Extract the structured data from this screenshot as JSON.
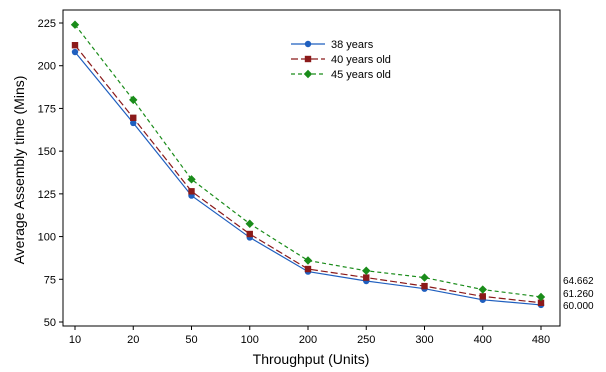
{
  "chart_data": {
    "type": "line",
    "categories": [
      "10",
      "20",
      "50",
      "100",
      "200",
      "250",
      "300",
      "400",
      "480"
    ],
    "xlabel": "Throughput (Units)",
    "ylabel": "Average Assembly time (Mins)",
    "ylim": [
      50,
      225
    ],
    "yticks": [
      50,
      75,
      100,
      125,
      150,
      175,
      200,
      225
    ],
    "grid": false,
    "legend_position": "top-center",
    "series": [
      {
        "name": "38 years",
        "color": "#1f5fbf",
        "marker": "circle",
        "dash": "solid",
        "values": [
          208,
          166.5,
          124,
          99.5,
          79.5,
          74,
          69.5,
          63,
          60
        ]
      },
      {
        "name": "40 years old",
        "color": "#8b1a1a",
        "marker": "square",
        "dash": "longdash",
        "values": [
          212,
          169.5,
          126.5,
          101.5,
          81,
          76,
          71,
          65,
          61.26
        ]
      },
      {
        "name": "45 years old",
        "color": "#1a8c1a",
        "marker": "diamond",
        "dash": "shortdash",
        "values": [
          224,
          180,
          133.5,
          107.5,
          86,
          80,
          76,
          69,
          64.662
        ]
      }
    ],
    "end_labels": [
      {
        "text": "64.662",
        "value": 64.662
      },
      {
        "text": "61.260",
        "value": 61.26
      },
      {
        "text": "60.000",
        "value": 60.0
      }
    ]
  }
}
